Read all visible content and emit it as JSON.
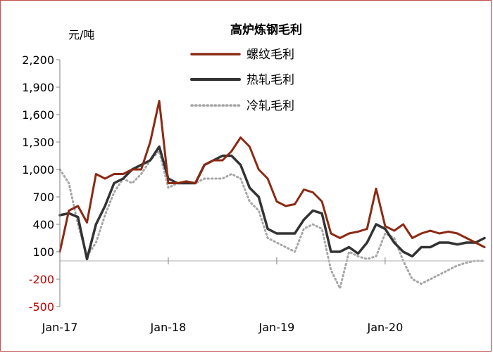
{
  "chart_data": {
    "type": "line",
    "title": "高炉炼钢毛利",
    "ylabel": "元/吨",
    "xlabel": "",
    "ylim": [
      -500,
      2200
    ],
    "yticks": [
      2200,
      1900,
      1600,
      1300,
      1000,
      700,
      400,
      100,
      -200,
      -500
    ],
    "ytick_labels": [
      "2,200",
      "1,900",
      "1,600",
      "1,300",
      "1,000",
      "700",
      "400",
      "100",
      "-200",
      "-500"
    ],
    "negative_tick_color": "#c00000",
    "xlim": [
      "2017-01",
      "2020-12"
    ],
    "xticks": [
      {
        "value": "2017-01",
        "label": "Jan-17"
      },
      {
        "value": "2018-01",
        "label": "Jan-18"
      },
      {
        "value": "2019-01",
        "label": "Jan-19"
      },
      {
        "value": "2020-01",
        "label": "Jan-20"
      }
    ],
    "grid": false,
    "legend": "top-center",
    "x": [
      "2017-01",
      "2017-02",
      "2017-03",
      "2017-04",
      "2017-05",
      "2017-06",
      "2017-07",
      "2017-08",
      "2017-09",
      "2017-10",
      "2017-11",
      "2017-12",
      "2018-01",
      "2018-02",
      "2018-03",
      "2018-04",
      "2018-05",
      "2018-06",
      "2018-07",
      "2018-08",
      "2018-09",
      "2018-10",
      "2018-11",
      "2018-12",
      "2019-01",
      "2019-02",
      "2019-03",
      "2019-04",
      "2019-05",
      "2019-06",
      "2019-07",
      "2019-08",
      "2019-09",
      "2019-10",
      "2019-11",
      "2019-12",
      "2020-01",
      "2020-02",
      "2020-03",
      "2020-04",
      "2020-05",
      "2020-06",
      "2020-07",
      "2020-08",
      "2020-09",
      "2020-10",
      "2020-11",
      "2020-12"
    ],
    "series": [
      {
        "name": "螺纹毛利",
        "color": "#8b2a14",
        "style": "solid",
        "width": 3,
        "values": [
          100,
          550,
          600,
          420,
          950,
          900,
          950,
          950,
          1000,
          1000,
          1300,
          1750,
          850,
          850,
          870,
          850,
          1050,
          1100,
          1100,
          1200,
          1350,
          1250,
          1000,
          900,
          650,
          600,
          620,
          780,
          750,
          650,
          300,
          250,
          300,
          320,
          350,
          790,
          380,
          330,
          400,
          250,
          300,
          330,
          300,
          320,
          300,
          250,
          200,
          150
        ]
      },
      {
        "name": "热轧毛利",
        "color": "#333333",
        "style": "solid",
        "width": 3.5,
        "values": [
          500,
          520,
          480,
          20,
          400,
          600,
          850,
          900,
          1000,
          1050,
          1100,
          1250,
          900,
          850,
          850,
          850,
          1050,
          1100,
          1150,
          1150,
          1050,
          800,
          700,
          350,
          300,
          300,
          300,
          450,
          550,
          520,
          100,
          100,
          150,
          80,
          200,
          400,
          350,
          200,
          100,
          50,
          150,
          150,
          200,
          200,
          180,
          200,
          200,
          250
        ]
      },
      {
        "name": "冷轧毛利",
        "color": "#a6a6a6",
        "style": "dotted",
        "width": 3,
        "values": [
          1000,
          850,
          400,
          50,
          200,
          500,
          750,
          900,
          850,
          950,
          1100,
          1200,
          800,
          850,
          850,
          850,
          900,
          900,
          900,
          950,
          900,
          650,
          550,
          250,
          200,
          150,
          100,
          350,
          400,
          350,
          -100,
          -300,
          100,
          50,
          20,
          50,
          300,
          250,
          0,
          -200,
          -250,
          -200,
          -150,
          -100,
          -50,
          -20,
          0,
          0
        ]
      }
    ]
  }
}
